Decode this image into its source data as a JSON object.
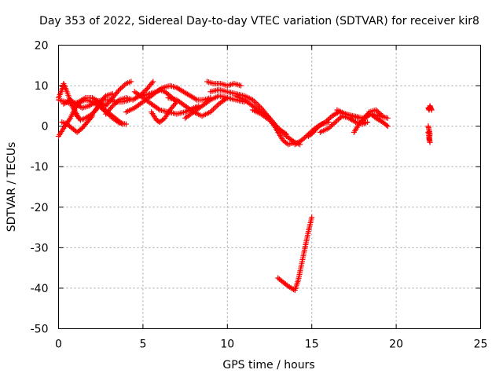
{
  "chart_data": {
    "type": "scatter",
    "title": "Day 353 of 2022, Sidereal Day-to-day VTEC variation (SDTVAR) for receiver kir8",
    "xlabel": "GPS time / hours",
    "ylabel": "SDTVAR / TECUs",
    "xlim": [
      0,
      25
    ],
    "ylim": [
      -50,
      20
    ],
    "x_ticks": [
      0,
      5,
      10,
      15,
      20,
      25
    ],
    "y_ticks": [
      -50,
      -40,
      -30,
      -20,
      -10,
      0,
      10,
      20
    ],
    "grid": true,
    "marker": "+",
    "series_color": "#ff0000",
    "tracks": [
      {
        "name": "track-a",
        "x": [
          0.0,
          0.3,
          0.7,
          1.0,
          1.3,
          1.6,
          2.0,
          2.4,
          2.8,
          3.2,
          3.6,
          4.0
        ],
        "y": [
          -2.5,
          -0.5,
          2.0,
          4.5,
          6.0,
          6.5,
          6.0,
          5.0,
          3.5,
          2.0,
          0.8,
          0.5
        ]
      },
      {
        "name": "track-b",
        "x": [
          0.0,
          0.2,
          0.3,
          0.5,
          0.8,
          1.2
        ],
        "y": [
          7.0,
          9.0,
          10.5,
          8.5,
          5.0,
          2.0
        ]
      },
      {
        "name": "track-c",
        "x": [
          0.2,
          0.5,
          0.8,
          1.1,
          1.4,
          1.7,
          2.0
        ],
        "y": [
          1.0,
          0.5,
          -0.5,
          -1.5,
          -0.5,
          1.0,
          2.5
        ]
      },
      {
        "name": "track-d",
        "x": [
          0.3,
          0.7,
          1.0,
          1.4,
          1.8,
          2.2,
          2.6,
          3.0,
          3.4,
          3.8,
          4.2
        ],
        "y": [
          5.5,
          6.5,
          5.5,
          4.5,
          5.0,
          6.0,
          6.5,
          6.5,
          6.0,
          6.0,
          6.5
        ]
      },
      {
        "name": "track-e",
        "x": [
          0.0,
          0.4,
          0.8,
          1.2,
          1.6,
          2.0,
          2.4,
          2.8,
          3.2,
          3.6,
          4.0,
          4.3
        ],
        "y": [
          6.5,
          6.0,
          5.5,
          6.0,
          7.0,
          7.0,
          6.0,
          5.0,
          7.0,
          9.0,
          10.5,
          11.0
        ]
      },
      {
        "name": "track-f",
        "x": [
          1.0,
          1.3,
          1.6,
          2.0,
          2.3
        ],
        "y": [
          3.0,
          1.5,
          2.0,
          3.0,
          4.5
        ]
      },
      {
        "name": "track-g",
        "x": [
          1.8,
          2.2,
          2.5,
          2.8,
          3.2
        ],
        "y": [
          2.0,
          4.0,
          6.0,
          7.5,
          8.0
        ]
      },
      {
        "name": "track-h",
        "x": [
          2.3,
          2.6,
          2.9,
          3.2,
          3.5,
          3.8
        ],
        "y": [
          5.5,
          4.5,
          3.5,
          2.5,
          1.5,
          0.5
        ]
      },
      {
        "name": "track-i",
        "x": [
          2.8,
          3.2,
          3.6,
          4.0,
          4.4,
          4.8,
          5.2,
          5.6
        ],
        "y": [
          3.0,
          5.0,
          6.5,
          7.0,
          6.5,
          7.5,
          9.0,
          11.0
        ]
      },
      {
        "name": "track-j",
        "x": [
          4.0,
          4.5,
          5.0,
          5.5,
          5.8,
          6.0,
          6.3,
          6.6,
          7.0
        ],
        "y": [
          3.5,
          4.5,
          6.0,
          7.5,
          8.5,
          9.0,
          8.5,
          7.5,
          6.0
        ]
      },
      {
        "name": "track-k",
        "x": [
          4.5,
          5.0,
          5.5,
          6.0,
          6.5,
          7.0,
          7.5,
          8.0,
          8.3
        ],
        "y": [
          8.5,
          7.0,
          5.5,
          4.0,
          3.5,
          3.0,
          3.5,
          4.5,
          5.0
        ]
      },
      {
        "name": "track-l",
        "x": [
          5.0,
          5.4,
          5.8,
          6.2,
          6.6,
          7.0,
          7.4,
          7.8,
          8.2,
          8.6,
          9.0
        ],
        "y": [
          7.5,
          8.0,
          8.5,
          9.5,
          10.0,
          9.5,
          8.5,
          7.5,
          6.5,
          6.5,
          7.0
        ]
      },
      {
        "name": "track-m",
        "x": [
          5.5,
          5.8,
          6.0,
          6.3,
          6.6,
          7.0
        ],
        "y": [
          3.5,
          1.5,
          1.0,
          2.0,
          4.0,
          6.0
        ]
      },
      {
        "name": "track-n",
        "x": [
          6.5,
          7.0,
          7.5,
          8.0,
          8.5,
          9.0,
          9.5,
          10.0
        ],
        "y": [
          7.0,
          6.5,
          5.0,
          3.5,
          2.5,
          3.5,
          5.5,
          7.0
        ]
      },
      {
        "name": "track-o",
        "x": [
          7.5,
          8.0,
          8.5,
          9.0,
          9.5,
          10.0,
          10.5,
          11.0
        ],
        "y": [
          2.0,
          3.5,
          5.0,
          6.5,
          7.5,
          7.0,
          6.5,
          6.0
        ]
      },
      {
        "name": "track-p",
        "x": [
          8.8,
          9.2,
          9.6,
          10.0,
          10.4,
          10.8
        ],
        "y": [
          11.0,
          10.5,
          10.5,
          10.0,
          10.5,
          10.0
        ]
      },
      {
        "name": "track-q",
        "x": [
          9.0,
          9.5,
          10.0,
          10.5,
          11.0,
          11.5,
          12.0,
          12.5,
          13.0,
          13.5
        ],
        "y": [
          8.5,
          9.0,
          8.5,
          8.0,
          7.5,
          6.5,
          4.5,
          2.0,
          -0.5,
          -2.0
        ]
      },
      {
        "name": "track-r",
        "x": [
          10.5,
          11.0,
          11.5,
          12.0,
          12.5,
          13.0,
          13.5,
          14.0,
          14.3
        ],
        "y": [
          7.5,
          6.5,
          5.0,
          3.5,
          2.0,
          -0.5,
          -2.5,
          -4.0,
          -4.5
        ]
      },
      {
        "name": "track-s",
        "x": [
          11.5,
          12.0,
          12.5,
          12.8,
          13.0,
          13.3,
          13.6,
          14.0
        ],
        "y": [
          4.0,
          3.0,
          1.5,
          0.0,
          -1.5,
          -3.5,
          -4.5,
          -4.0
        ]
      },
      {
        "name": "track-t",
        "x": [
          14.0,
          14.4,
          14.8,
          15.2,
          15.6,
          16.0
        ],
        "y": [
          -4.5,
          -3.5,
          -2.0,
          -0.5,
          0.5,
          1.0
        ]
      },
      {
        "name": "track-u",
        "x": [
          14.8,
          15.1,
          15.4,
          15.8,
          16.2,
          16.6,
          17.0,
          17.4,
          17.8
        ],
        "y": [
          -2.5,
          -1.5,
          0.0,
          1.0,
          2.5,
          3.5,
          3.0,
          2.5,
          2.0
        ]
      },
      {
        "name": "track-v",
        "x": [
          15.5,
          16.0,
          16.4,
          16.8,
          17.2,
          17.6,
          18.0,
          18.3
        ],
        "y": [
          -1.5,
          -0.5,
          1.0,
          2.5,
          2.0,
          1.0,
          0.5,
          1.0
        ]
      },
      {
        "name": "track-w",
        "x": [
          16.5,
          17.0,
          17.5,
          18.0,
          18.5,
          19.0,
          19.5
        ],
        "y": [
          4.0,
          3.0,
          2.5,
          2.0,
          3.0,
          2.5,
          2.0
        ]
      },
      {
        "name": "track-x",
        "x": [
          17.5,
          17.8,
          18.1,
          18.5,
          18.8,
          19.2,
          19.5
        ],
        "y": [
          -1.5,
          0.5,
          2.0,
          3.0,
          2.0,
          1.0,
          0.0
        ]
      },
      {
        "name": "track-y",
        "x": [
          18.0,
          18.4,
          18.8,
          19.2
        ],
        "y": [
          1.0,
          3.5,
          4.0,
          2.5
        ]
      },
      {
        "name": "track-z",
        "x": [
          13.0,
          13.3,
          13.6,
          14.0,
          14.2,
          14.5,
          14.8,
          15.0
        ],
        "y": [
          -37.5,
          -38.5,
          -39.5,
          -40.5,
          -38.0,
          -32.0,
          -26.0,
          -22.5
        ]
      },
      {
        "name": "track-aa",
        "x": [
          21.9,
          21.95,
          22.0,
          22.05,
          22.1
        ],
        "y": [
          4.5,
          4.0,
          5.0,
          4.5,
          4.0
        ]
      },
      {
        "name": "track-bb",
        "x": [
          21.9,
          21.95,
          22.0,
          21.95,
          22.0,
          21.9
        ],
        "y": [
          0.0,
          -1.0,
          -2.0,
          -3.0,
          -4.0,
          -1.5
        ]
      }
    ]
  }
}
